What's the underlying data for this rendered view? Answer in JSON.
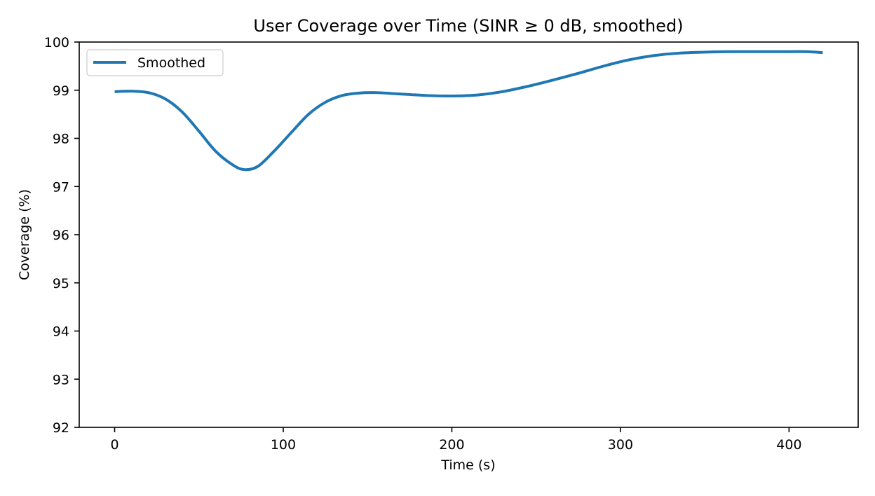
{
  "chart_data": {
    "type": "line",
    "title": "User Coverage over Time (SINR ≥ 0 dB, smoothed)",
    "xlabel": "Time (s)",
    "ylabel": "Coverage (%)",
    "xlim": [
      -21,
      441
    ],
    "ylim": [
      92,
      100
    ],
    "xticks": [
      0,
      100,
      200,
      300,
      400
    ],
    "yticks": [
      92,
      93,
      94,
      95,
      96,
      97,
      98,
      99,
      100
    ],
    "grid": false,
    "legend_position": "top-left",
    "series": [
      {
        "name": "Smoothed",
        "color": "#1f77b4",
        "x": [
          0,
          10,
          20,
          30,
          40,
          50,
          60,
          70,
          77,
          85,
          95,
          105,
          115,
          125,
          135,
          145,
          155,
          165,
          175,
          185,
          200,
          215,
          230,
          245,
          260,
          275,
          290,
          305,
          320,
          335,
          350,
          365,
          380,
          395,
          410,
          420
        ],
        "y": [
          98.97,
          98.98,
          98.95,
          98.82,
          98.55,
          98.15,
          97.73,
          97.45,
          97.35,
          97.42,
          97.75,
          98.13,
          98.5,
          98.75,
          98.89,
          98.94,
          98.95,
          98.93,
          98.91,
          98.89,
          98.88,
          98.9,
          98.97,
          99.08,
          99.21,
          99.35,
          99.5,
          99.63,
          99.72,
          99.77,
          99.79,
          99.8,
          99.8,
          99.8,
          99.8,
          99.78
        ]
      }
    ]
  }
}
